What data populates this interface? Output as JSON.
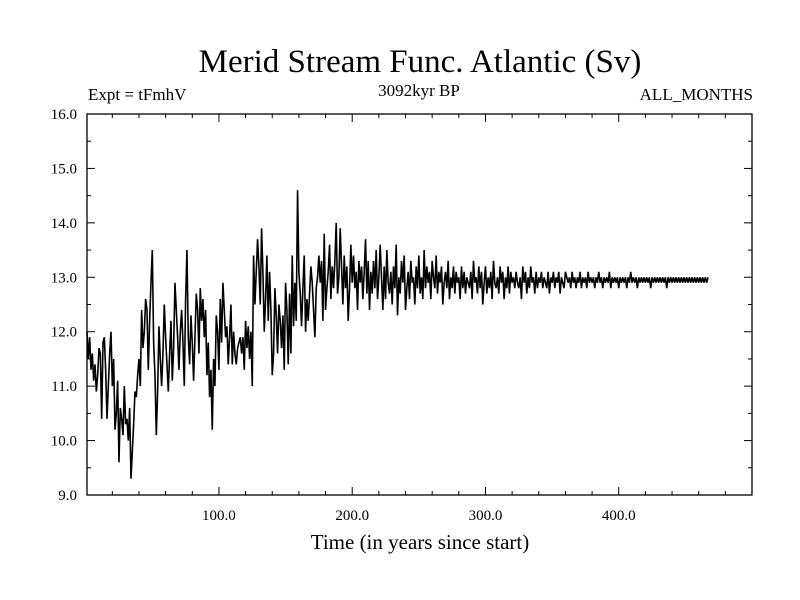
{
  "chart_data": {
    "type": "line",
    "title": "Merid Stream Func. Atlantic (Sv)",
    "subtitle_left": "Expt = tFmhV",
    "subtitle_center": "3092kyr BP",
    "subtitle_right": "ALL_MONTHS",
    "xlabel": "Time (in years since start)",
    "ylabel": "",
    "xlim": [
      1,
      500
    ],
    "ylim": [
      9.0,
      16.0
    ],
    "x_ticks": [
      100,
      200,
      300,
      400
    ],
    "x_tick_labels": [
      "100.0",
      "200.0",
      "300.0",
      "400.0"
    ],
    "y_ticks": [
      9,
      10,
      11,
      12,
      13,
      14,
      15,
      16
    ],
    "y_tick_labels": [
      "9.0",
      "10.0",
      "11.0",
      "12.0",
      "13.0",
      "14.0",
      "15.0",
      "16.0"
    ],
    "grid": false,
    "legend": "none",
    "series": [
      {
        "name": "Merid Stream Func. Atlantic",
        "x_start": 1,
        "x_step": 1,
        "values": [
          12.0,
          11.5,
          11.9,
          11.3,
          11.6,
          11.1,
          11.4,
          10.9,
          11.2,
          11.7,
          11.6,
          10.4,
          11.8,
          11.9,
          11.3,
          10.4,
          11.0,
          11.6,
          12.0,
          11.0,
          11.5,
          10.2,
          10.5,
          11.1,
          9.6,
          10.6,
          10.4,
          10.1,
          11.0,
          10.3,
          10.4,
          10.0,
          10.6,
          9.3,
          9.8,
          10.3,
          10.9,
          10.8,
          11.2,
          11.5,
          11.0,
          12.4,
          11.7,
          12.0,
          12.6,
          12.4,
          11.3,
          12.2,
          12.9,
          13.5,
          11.8,
          11.2,
          10.1,
          10.9,
          12.1,
          11.5,
          11.0,
          11.6,
          12.5,
          11.9,
          11.4,
          10.9,
          11.6,
          12.2,
          11.1,
          11.7,
          12.9,
          12.4,
          11.9,
          11.3,
          12.0,
          12.4,
          11.8,
          11.0,
          12.6,
          13.5,
          11.9,
          11.4,
          12.3,
          11.8,
          11.1,
          11.9,
          12.7,
          12.4,
          11.6,
          12.8,
          12.2,
          12.6,
          11.9,
          12.4,
          11.2,
          11.8,
          10.8,
          11.3,
          10.2,
          11.5,
          11.0,
          12.3,
          12.0,
          11.3,
          12.6,
          11.8,
          12.9,
          12.4,
          11.9,
          12.1,
          11.4,
          11.9,
          12.5,
          11.4,
          12.0,
          11.6,
          11.4,
          11.7,
          11.8,
          11.9,
          11.6,
          11.9,
          11.3,
          12.2,
          11.7,
          12.1,
          11.5,
          12.0,
          11.0,
          13.4,
          12.5,
          13.1,
          13.7,
          13.2,
          12.5,
          13.9,
          13.1,
          12.0,
          12.6,
          13.4,
          12.2,
          13.1,
          12.4,
          11.2,
          11.6,
          12.8,
          12.3,
          11.6,
          12.5,
          12.2,
          11.7,
          12.3,
          11.3,
          12.9,
          12.4,
          11.4,
          12.7,
          11.6,
          13.4,
          12.1,
          12.9,
          12.2,
          14.6,
          13.1,
          12.7,
          12.1,
          12.8,
          13.4,
          12.0,
          12.6,
          12.2,
          12.7,
          13.2,
          12.9,
          12.4,
          11.9,
          12.8,
          13.0,
          13.4,
          12.9,
          13.3,
          12.2,
          13.8,
          12.4,
          12.8,
          13.1,
          13.6,
          12.6,
          13.2,
          12.8,
          13.3,
          14.0,
          12.7,
          13.0,
          13.9,
          13.2,
          12.5,
          13.4,
          12.8,
          13.2,
          12.2,
          12.8,
          13.6,
          12.9,
          13.4,
          12.8,
          13.1,
          12.4,
          13.3,
          12.9,
          13.2,
          12.6,
          13.1,
          13.7,
          12.7,
          13.3,
          12.4,
          13.1,
          12.7,
          13.3,
          12.8,
          13.5,
          12.6,
          13.0,
          13.6,
          13.0,
          12.4,
          13.2,
          12.6,
          13.5,
          12.9,
          12.7,
          13.1,
          12.5,
          13.2,
          12.8,
          13.6,
          12.3,
          13.0,
          12.7,
          13.3,
          12.9,
          13.4,
          12.4,
          12.8,
          13.1,
          12.6,
          13.3,
          12.9,
          13.0,
          12.5,
          13.2,
          12.8,
          13.4,
          12.7,
          13.0,
          12.6,
          13.5,
          12.8,
          13.2,
          12.9,
          13.1,
          12.6,
          13.3,
          13.0,
          12.8,
          13.4,
          12.7,
          13.1,
          12.9,
          13.2,
          12.5,
          12.9,
          13.1,
          12.8,
          13.3,
          12.6,
          13.0,
          12.8,
          13.2,
          12.7,
          13.1,
          12.9,
          13.0,
          12.6,
          13.2,
          12.8,
          13.1,
          12.7,
          13.0,
          12.9,
          12.8,
          13.1,
          12.6,
          13.3,
          12.9,
          13.0,
          12.7,
          13.2,
          12.8,
          13.1,
          12.5,
          12.9,
          13.2,
          12.7,
          13.0,
          12.8,
          13.1,
          12.6,
          13.3,
          12.9,
          12.8,
          13.0,
          12.7,
          13.2,
          12.9,
          13.1,
          12.6,
          13.0,
          12.8,
          13.2,
          12.7,
          13.1,
          12.9,
          13.0,
          12.8,
          13.1,
          12.9,
          12.8,
          13.0,
          12.6,
          13.2,
          12.9,
          13.1,
          12.7,
          13.0,
          12.8,
          13.2,
          12.9,
          13.0,
          12.7,
          13.1,
          12.8,
          13.0,
          12.9,
          13.1,
          12.8,
          13.0,
          12.9,
          12.8,
          13.1,
          12.7,
          13.0,
          12.9,
          13.1,
          12.8,
          13.0,
          12.9,
          13.1,
          12.7,
          13.0,
          12.9,
          12.8,
          13.1,
          13.0,
          12.9,
          13.0,
          12.8,
          13.1,
          12.9,
          13.0,
          12.8,
          13.0,
          12.9,
          13.1,
          12.8,
          13.0,
          12.9,
          13.0,
          12.8,
          13.1,
          12.9,
          13.0,
          12.9,
          13.0,
          12.8,
          13.0,
          12.9,
          13.1,
          12.9,
          13.0,
          12.8,
          13.0,
          12.9,
          13.0,
          12.9,
          13.1,
          12.8,
          13.0,
          12.9,
          13.0,
          12.9,
          13.0,
          12.8,
          13.0,
          12.9,
          13.0,
          12.9,
          13.0,
          12.8,
          13.0,
          12.9,
          13.1,
          12.9,
          13.0,
          12.9,
          13.0,
          12.8,
          13.0,
          12.9,
          13.0,
          12.9,
          13.0,
          12.9,
          13.0,
          12.9,
          13.0,
          12.8,
          13.0,
          12.9,
          13.0,
          12.9,
          13.0,
          12.9,
          13.0,
          12.9,
          13.0,
          12.9,
          13.0,
          12.8,
          13.0,
          12.9,
          13.0,
          12.9,
          13.0,
          12.9,
          13.0,
          12.9,
          13.0,
          12.9,
          13.0,
          12.9,
          13.0,
          12.9,
          13.0,
          12.9,
          13.0,
          12.9,
          13.0,
          12.9,
          13.0,
          12.9,
          13.0,
          12.9,
          13.0,
          12.9,
          13.0,
          12.9,
          13.0,
          12.9,
          13.0
        ]
      }
    ]
  }
}
